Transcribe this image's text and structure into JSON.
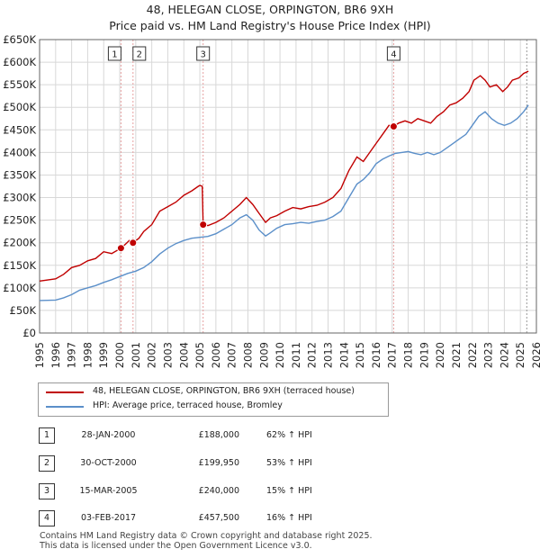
{
  "header": {
    "title": "48, HELEGAN CLOSE, ORPINGTON, BR6 9XH",
    "subtitle": "Price paid vs. HM Land Registry's House Price Index (HPI)"
  },
  "colors": {
    "property": "#c00000",
    "hpi": "#5b8fc9",
    "sale_marker": "#c00000",
    "vline": "#e6a0a0",
    "grid": "#d8d8d8"
  },
  "chart_data": {
    "type": "line",
    "title": "48, HELEGAN CLOSE, ORPINGTON, BR6 9XH",
    "subtitle": "Price paid vs. HM Land Registry's House Price Index (HPI)",
    "xlim": [
      1995,
      2026
    ],
    "ylim": [
      0,
      650000
    ],
    "y_ticks": [
      0,
      50000,
      100000,
      150000,
      200000,
      250000,
      300000,
      350000,
      400000,
      450000,
      500000,
      550000,
      600000,
      650000
    ],
    "y_tick_labels": [
      "£0",
      "£50K",
      "£100K",
      "£150K",
      "£200K",
      "£250K",
      "£300K",
      "£350K",
      "£400K",
      "£450K",
      "£500K",
      "£550K",
      "£600K",
      "£650K"
    ],
    "x_ticks": [
      1995,
      1996,
      1997,
      1998,
      1999,
      2000,
      2001,
      2002,
      2003,
      2004,
      2005,
      2006,
      2007,
      2008,
      2009,
      2010,
      2011,
      2012,
      2013,
      2014,
      2015,
      2016,
      2017,
      2018,
      2019,
      2020,
      2021,
      2022,
      2023,
      2024,
      2025,
      2026
    ],
    "x_tick_labels": [
      "1995",
      "1996",
      "1997",
      "1998",
      "1999",
      "2000",
      "2001",
      "2002",
      "2003",
      "2004",
      "2005",
      "2006",
      "2007",
      "2008",
      "2009",
      "2010",
      "2011",
      "2012",
      "2013",
      "2014",
      "2015",
      "2016",
      "2017",
      "2018",
      "2019",
      "2020",
      "2021",
      "2022",
      "2023",
      "2024",
      "2025",
      "2026"
    ],
    "series": [
      {
        "name": "48, HELEGAN CLOSE, ORPINGTON, BR6 9XH (terraced house)",
        "x": [
          1995.0,
          1996.0,
          1996.5,
          1997.0,
          1997.5,
          1998.0,
          1998.5,
          1999.0,
          1999.5,
          2000.077,
          2000.3,
          2000.6,
          2000.829,
          2001.2,
          2001.5,
          2002.0,
          2002.5,
          2003.0,
          2003.5,
          2004.0,
          2004.5,
          2004.9,
          2005.0,
          2005.15,
          2005.204,
          2005.5,
          2006.0,
          2006.5,
          2007.0,
          2007.5,
          2007.9,
          2008.3,
          2008.7,
          2009.1,
          2009.4,
          2009.8,
          2010.3,
          2010.8,
          2011.3,
          2011.8,
          2012.3,
          2012.8,
          2013.3,
          2013.8,
          2014.3,
          2014.8,
          2015.2,
          2015.6,
          2016.0,
          2016.4,
          2016.8,
          2017.093,
          2017.4,
          2017.8,
          2018.2,
          2018.6,
          2019.0,
          2019.4,
          2019.8,
          2020.2,
          2020.6,
          2021.0,
          2021.4,
          2021.8,
          2022.1,
          2022.5,
          2022.8,
          2023.1,
          2023.5,
          2023.9,
          2024.2,
          2024.5,
          2024.9,
          2025.2,
          2025.5
        ],
        "y": [
          115000,
          120000,
          130000,
          145000,
          150000,
          160000,
          165000,
          180000,
          176000,
          188000,
          195000,
          205000,
          199950,
          210000,
          225000,
          240000,
          270000,
          280000,
          290000,
          305000,
          315000,
          325000,
          327000,
          325000,
          240000,
          238000,
          245000,
          255000,
          270000,
          285000,
          300000,
          285000,
          265000,
          245000,
          255000,
          260000,
          270000,
          278000,
          275000,
          280000,
          283000,
          290000,
          300000,
          320000,
          360000,
          390000,
          380000,
          400000,
          420000,
          440000,
          460000,
          457500,
          465000,
          470000,
          465000,
          475000,
          470000,
          465000,
          480000,
          490000,
          505000,
          510000,
          520000,
          535000,
          560000,
          570000,
          560000,
          545000,
          550000,
          535000,
          545000,
          560000,
          565000,
          575000,
          580000
        ]
      },
      {
        "name": "HPI: Average price, terraced house, Bromley",
        "x": [
          1995.0,
          1996.0,
          1996.5,
          1997.0,
          1997.5,
          1998.0,
          1998.5,
          1999.0,
          1999.5,
          2000.0,
          2000.5,
          2001.0,
          2001.5,
          2002.0,
          2002.5,
          2003.0,
          2003.5,
          2004.0,
          2004.5,
          2005.0,
          2005.5,
          2006.0,
          2006.5,
          2007.0,
          2007.5,
          2007.9,
          2008.3,
          2008.7,
          2009.1,
          2009.4,
          2009.8,
          2010.3,
          2010.8,
          2011.3,
          2011.8,
          2012.3,
          2012.8,
          2013.3,
          2013.8,
          2014.3,
          2014.8,
          2015.2,
          2015.6,
          2016.0,
          2016.4,
          2016.8,
          2017.2,
          2017.6,
          2018.0,
          2018.4,
          2018.8,
          2019.2,
          2019.6,
          2020.0,
          2020.4,
          2020.8,
          2021.2,
          2021.6,
          2022.0,
          2022.4,
          2022.8,
          2023.2,
          2023.6,
          2024.0,
          2024.4,
          2024.8,
          2025.2,
          2025.5
        ],
        "y": [
          72000,
          73000,
          78000,
          85000,
          95000,
          100000,
          105000,
          112000,
          118000,
          125000,
          132000,
          137000,
          145000,
          158000,
          175000,
          188000,
          198000,
          205000,
          210000,
          212000,
          214000,
          220000,
          230000,
          240000,
          255000,
          262000,
          250000,
          228000,
          215000,
          222000,
          232000,
          240000,
          242000,
          245000,
          243000,
          247000,
          250000,
          258000,
          270000,
          300000,
          330000,
          340000,
          355000,
          375000,
          385000,
          392000,
          398000,
          400000,
          402000,
          398000,
          395000,
          400000,
          395000,
          400000,
          410000,
          420000,
          430000,
          440000,
          460000,
          480000,
          490000,
          475000,
          465000,
          460000,
          465000,
          475000,
          490000,
          505000
        ]
      }
    ],
    "sales": [
      {
        "label": "1",
        "x": 2000.077,
        "y": 188000
      },
      {
        "label": "2",
        "x": 2000.829,
        "y": 199950
      },
      {
        "label": "3",
        "x": 2005.204,
        "y": 240000
      },
      {
        "label": "4",
        "x": 2017.093,
        "y": 457500
      }
    ],
    "grid": true
  },
  "legend": {
    "property_label": "48, HELEGAN CLOSE, ORPINGTON, BR6 9XH (terraced house)",
    "hpi_label": "HPI: Average price, terraced house, Bromley"
  },
  "transactions": [
    {
      "num": "1",
      "date": "28-JAN-2000",
      "price": "£188,000",
      "hpi": "62% ↑ HPI"
    },
    {
      "num": "2",
      "date": "30-OCT-2000",
      "price": "£199,950",
      "hpi": "53% ↑ HPI"
    },
    {
      "num": "3",
      "date": "15-MAR-2005",
      "price": "£240,000",
      "hpi": "15% ↑ HPI"
    },
    {
      "num": "4",
      "date": "03-FEB-2017",
      "price": "£457,500",
      "hpi": "16% ↑ HPI"
    }
  ],
  "footer": {
    "line1": "Contains HM Land Registry data © Crown copyright and database right 2025.",
    "line2": "This data is licensed under the Open Government Licence v3.0."
  }
}
